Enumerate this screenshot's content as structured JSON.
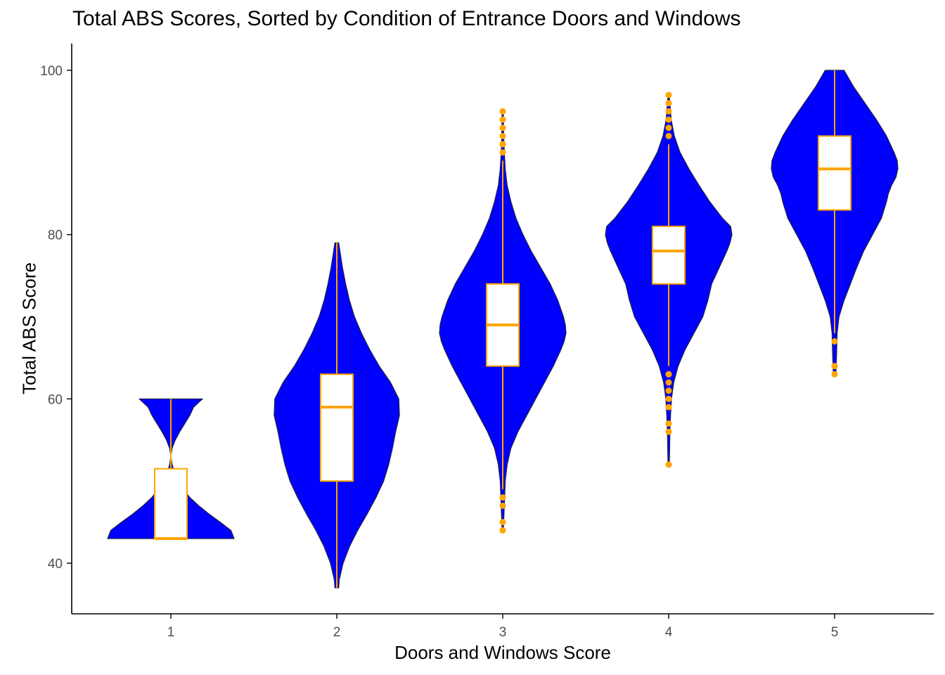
{
  "chart_data": {
    "type": "violin",
    "title": "Total ABS Scores, Sorted by Condition of Entrance Doors and Windows",
    "xlabel": "Doors and Windows Score",
    "ylabel": "Total ABS Score",
    "categories": [
      "1",
      "2",
      "3",
      "4",
      "5"
    ],
    "ylim": [
      34,
      103
    ],
    "yticks": [
      40,
      60,
      80,
      100
    ],
    "grid": false,
    "colors": {
      "violin_fill": "#0000ff",
      "violin_outline": "#222244",
      "box_fill": "#ffffff",
      "box_stroke": "#ffa500",
      "outlier": "#ffa500",
      "axis": "#000000"
    },
    "groups": [
      {
        "category": "1",
        "box": {
          "min": 43,
          "q1": 43,
          "median": 43,
          "q3": 51.5,
          "max": 60
        },
        "outliers": [],
        "density": [
          [
            43,
            1.0
          ],
          [
            44,
            0.95
          ],
          [
            45,
            0.78
          ],
          [
            46,
            0.6
          ],
          [
            47,
            0.44
          ],
          [
            48,
            0.3
          ],
          [
            49,
            0.2
          ],
          [
            50,
            0.12
          ],
          [
            51,
            0.06
          ],
          [
            52,
            0.02
          ],
          [
            53,
            0.0
          ],
          [
            54,
            0.02
          ],
          [
            55,
            0.07
          ],
          [
            56,
            0.14
          ],
          [
            57,
            0.22
          ],
          [
            58,
            0.3
          ],
          [
            59,
            0.36
          ],
          [
            60,
            0.5
          ]
        ]
      },
      {
        "category": "2",
        "box": {
          "min": 37,
          "q1": 50,
          "median": 59,
          "q3": 63,
          "max": 79
        },
        "outliers": [],
        "density": [
          [
            37,
            0.03
          ],
          [
            38,
            0.04
          ],
          [
            40,
            0.1
          ],
          [
            42,
            0.2
          ],
          [
            44,
            0.33
          ],
          [
            46,
            0.48
          ],
          [
            48,
            0.62
          ],
          [
            50,
            0.74
          ],
          [
            52,
            0.82
          ],
          [
            54,
            0.88
          ],
          [
            56,
            0.93
          ],
          [
            58,
            0.99
          ],
          [
            60,
            0.98
          ],
          [
            62,
            0.85
          ],
          [
            64,
            0.67
          ],
          [
            66,
            0.52
          ],
          [
            68,
            0.39
          ],
          [
            70,
            0.28
          ],
          [
            72,
            0.2
          ],
          [
            74,
            0.14
          ],
          [
            76,
            0.09
          ],
          [
            78,
            0.05
          ],
          [
            79,
            0.03
          ]
        ]
      },
      {
        "category": "3",
        "box": {
          "min": 49,
          "q1": 64,
          "median": 69,
          "q3": 74,
          "max": 89
        },
        "outliers": [
          48,
          47,
          45,
          44,
          90,
          91,
          91,
          92,
          93,
          94,
          95
        ],
        "density": [
          [
            44,
            0.01
          ],
          [
            46,
            0.02
          ],
          [
            48,
            0.03
          ],
          [
            50,
            0.04
          ],
          [
            52,
            0.07
          ],
          [
            54,
            0.13
          ],
          [
            56,
            0.24
          ],
          [
            58,
            0.38
          ],
          [
            60,
            0.52
          ],
          [
            62,
            0.66
          ],
          [
            64,
            0.8
          ],
          [
            66,
            0.92
          ],
          [
            67,
            0.97
          ],
          [
            68,
            1.0
          ],
          [
            69,
            0.99
          ],
          [
            70,
            0.96
          ],
          [
            72,
            0.87
          ],
          [
            74,
            0.75
          ],
          [
            76,
            0.6
          ],
          [
            78,
            0.45
          ],
          [
            80,
            0.32
          ],
          [
            82,
            0.21
          ],
          [
            84,
            0.13
          ],
          [
            86,
            0.07
          ],
          [
            88,
            0.04
          ],
          [
            90,
            0.025
          ],
          [
            92,
            0.015
          ],
          [
            95,
            0.01
          ]
        ]
      },
      {
        "category": "4",
        "box": {
          "min": 64,
          "q1": 74,
          "median": 78,
          "q3": 81,
          "max": 91
        },
        "outliers": [
          52,
          56,
          57,
          59,
          60,
          61,
          62,
          63,
          63,
          92,
          93,
          94,
          95,
          96,
          97
        ],
        "density": [
          [
            52,
            0.01
          ],
          [
            54,
            0.015
          ],
          [
            56,
            0.02
          ],
          [
            58,
            0.03
          ],
          [
            60,
            0.045
          ],
          [
            62,
            0.08
          ],
          [
            64,
            0.15
          ],
          [
            66,
            0.26
          ],
          [
            68,
            0.4
          ],
          [
            70,
            0.54
          ],
          [
            72,
            0.62
          ],
          [
            74,
            0.68
          ],
          [
            76,
            0.8
          ],
          [
            78,
            0.92
          ],
          [
            79,
            0.97
          ],
          [
            80,
            1.0
          ],
          [
            81,
            0.98
          ],
          [
            82,
            0.85
          ],
          [
            84,
            0.65
          ],
          [
            86,
            0.48
          ],
          [
            88,
            0.32
          ],
          [
            90,
            0.18
          ],
          [
            92,
            0.09
          ],
          [
            94,
            0.04
          ],
          [
            96,
            0.02
          ],
          [
            97,
            0.01
          ]
        ]
      },
      {
        "category": "5",
        "box": {
          "min": 68,
          "q1": 83,
          "median": 88,
          "q3": 92,
          "max": 100
        },
        "outliers": [
          67,
          64,
          64,
          63
        ],
        "density": [
          [
            63,
            0.02
          ],
          [
            65,
            0.03
          ],
          [
            68,
            0.04
          ],
          [
            70,
            0.07
          ],
          [
            72,
            0.15
          ],
          [
            74,
            0.25
          ],
          [
            76,
            0.35
          ],
          [
            78,
            0.46
          ],
          [
            80,
            0.6
          ],
          [
            82,
            0.74
          ],
          [
            84,
            0.82
          ],
          [
            85,
            0.85
          ],
          [
            86,
            0.9
          ],
          [
            87,
            0.97
          ],
          [
            88,
            1.0
          ],
          [
            89,
            0.99
          ],
          [
            90,
            0.94
          ],
          [
            92,
            0.82
          ],
          [
            94,
            0.66
          ],
          [
            96,
            0.48
          ],
          [
            98,
            0.3
          ],
          [
            100,
            0.15
          ]
        ]
      }
    ]
  }
}
